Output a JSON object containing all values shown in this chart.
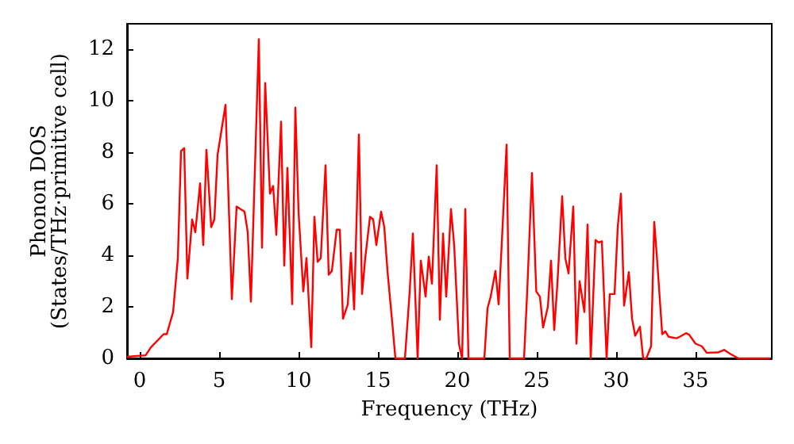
{
  "chart_data": {
    "type": "line",
    "xlabel": "Frequency (THz)",
    "ylabel": "Phonon DOS\n(States/THz·primitive cell)",
    "xlim": [
      -0.8,
      39.8
    ],
    "xticks": [
      0,
      5,
      10,
      15,
      20,
      25,
      30,
      35
    ],
    "ylim": [
      0,
      13
    ],
    "yticks": [
      0,
      2,
      4,
      6,
      8,
      10,
      12
    ],
    "grid": false,
    "marker": "none",
    "line_style": "solid",
    "series": [
      {
        "color": "#ff0000",
        "x": [
          -0.8,
          0.37,
          0.7,
          1.5,
          1.7,
          2.1,
          2.4,
          2.6,
          2.8,
          3.0,
          3.3,
          3.5,
          3.8,
          4.0,
          4.2,
          4.5,
          4.7,
          4.9,
          5.4,
          5.8,
          6.1,
          6.6,
          6.8,
          7.0,
          7.5,
          7.7,
          7.9,
          8.2,
          8.4,
          8.6,
          8.9,
          9.1,
          9.3,
          9.6,
          9.8,
          10.0,
          10.3,
          10.5,
          10.8,
          11.0,
          11.2,
          11.4,
          11.7,
          11.9,
          12.1,
          12.4,
          12.6,
          12.8,
          13.1,
          13.3,
          13.5,
          13.8,
          14.0,
          14.2,
          14.5,
          14.7,
          14.9,
          15.2,
          15.4,
          15.6,
          15.9,
          16.1,
          16.7,
          17.0,
          17.2,
          17.5,
          17.7,
          18.0,
          18.2,
          18.4,
          18.7,
          18.9,
          19.1,
          19.3,
          19.6,
          19.8,
          20.1,
          20.3,
          20.5,
          20.7,
          21.7,
          21.9,
          22.1,
          22.4,
          22.6,
          22.8,
          23.1,
          23.3,
          24.2,
          24.4,
          24.7,
          24.97,
          25.2,
          25.4,
          25.7,
          25.9,
          26.1,
          26.3,
          26.6,
          26.8,
          27.0,
          27.3,
          27.5,
          27.7,
          28.0,
          28.2,
          28.4,
          28.7,
          28.9,
          29.1,
          29.4,
          29.6,
          29.9,
          30.1,
          30.3,
          30.5,
          30.8,
          31.0,
          31.2,
          31.5,
          31.7,
          31.9,
          32.2,
          32.4,
          32.6,
          32.9,
          33.1,
          33.3,
          33.8,
          34.0,
          34.4,
          34.6,
          35.0,
          35.4,
          35.7,
          36.4,
          36.8,
          37.2,
          37.7,
          39.7
        ],
        "values": [
          0.06,
          0.12,
          0.43,
          0.94,
          0.94,
          1.8,
          3.9,
          8.06,
          8.17,
          3.1,
          5.4,
          4.9,
          6.8,
          4.4,
          8.1,
          5.1,
          5.4,
          7.9,
          9.85,
          2.3,
          5.9,
          5.7,
          4.9,
          2.2,
          12.4,
          4.3,
          10.7,
          6.4,
          6.7,
          4.8,
          9.2,
          3.6,
          7.4,
          2.1,
          9.74,
          5.7,
          2.6,
          3.9,
          0.43,
          5.5,
          3.75,
          3.9,
          7.5,
          3.25,
          3.4,
          5.0,
          5.0,
          1.54,
          2.1,
          4.1,
          1.9,
          8.7,
          2.5,
          3.9,
          5.5,
          5.4,
          4.4,
          5.7,
          5.1,
          3.4,
          1.4,
          0,
          0,
          2.6,
          4.85,
          0,
          3.8,
          2.4,
          3.95,
          2.9,
          7.5,
          1.5,
          4.85,
          2.4,
          5.8,
          4.4,
          0.57,
          0,
          5.8,
          0,
          0,
          1.95,
          2.4,
          3.4,
          2.1,
          4.5,
          8.3,
          0,
          0,
          2.6,
          7.2,
          2.6,
          2.4,
          1.2,
          2.0,
          3.8,
          1.1,
          2.9,
          6.3,
          3.9,
          3.3,
          5.9,
          0.57,
          3.0,
          1.8,
          5.2,
          0,
          4.6,
          4.5,
          4.55,
          0,
          2.5,
          2.5,
          5.1,
          6.4,
          2.05,
          3.35,
          1.55,
          0.88,
          1.23,
          0,
          0,
          0.47,
          5.3,
          3.65,
          0.94,
          1.05,
          0.84,
          0.78,
          0.84,
          0.98,
          0.92,
          0.57,
          0.47,
          0.22,
          0.23,
          0.33,
          0.17,
          0,
          0
        ]
      }
    ]
  }
}
